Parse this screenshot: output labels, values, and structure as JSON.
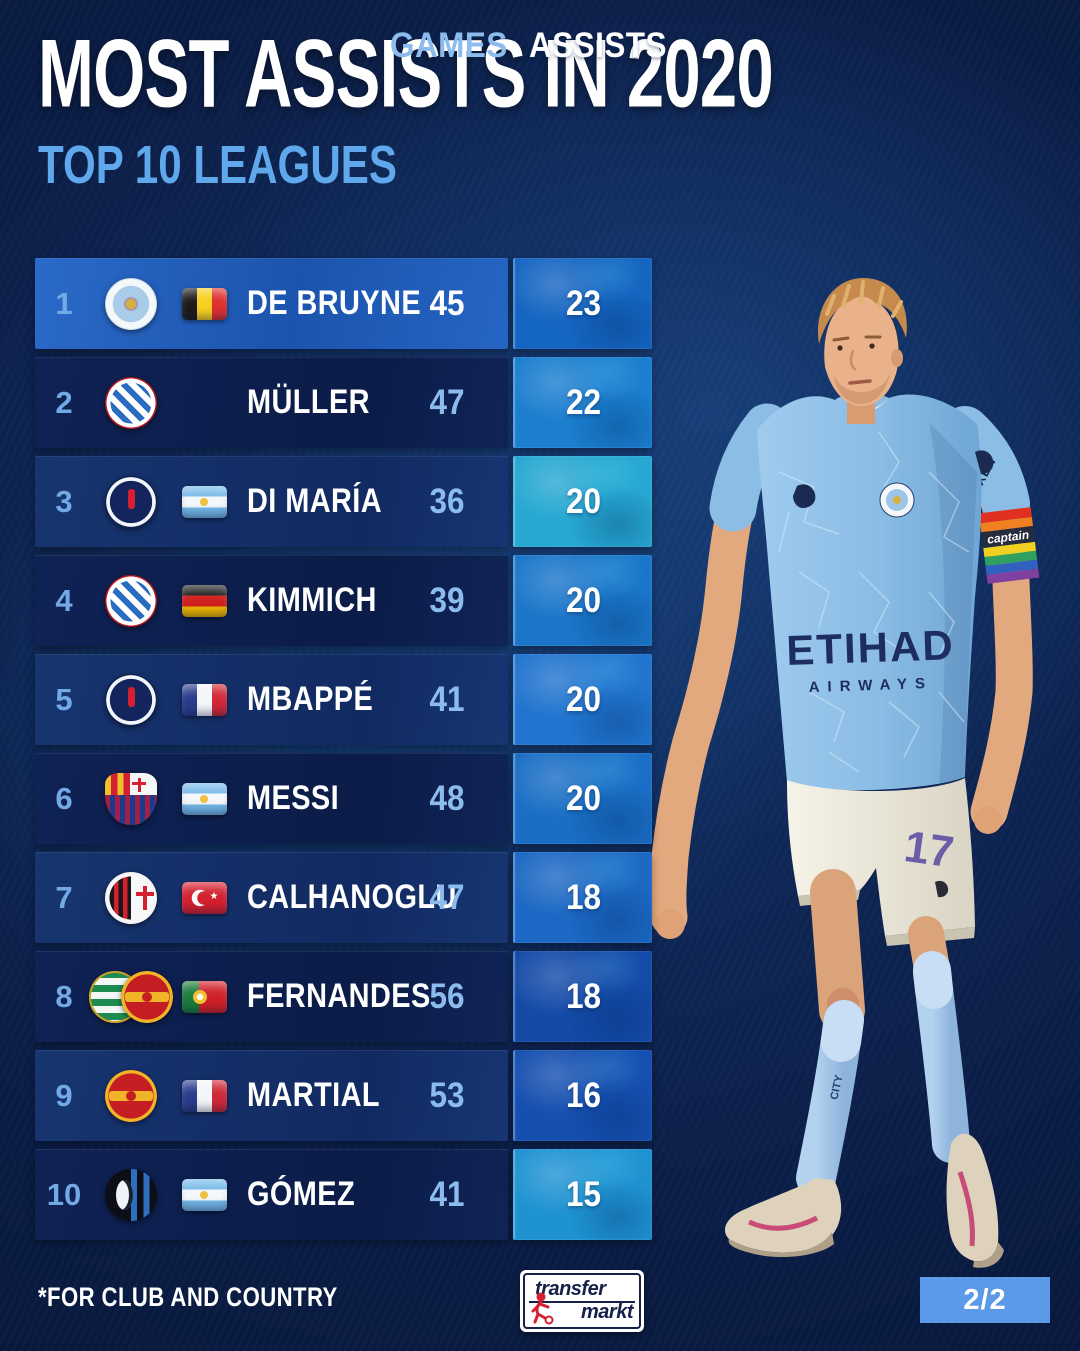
{
  "header": {
    "title": "MOST ASSISTS IN 2020",
    "subtitle": "TOP 10 LEAGUES"
  },
  "chart_data": {
    "type": "table",
    "title": "MOST ASSISTS IN 2020",
    "subtitle": "TOP 10 LEAGUES",
    "columns": [
      "GAMES",
      "ASSISTS"
    ],
    "rows": [
      {
        "rank": "1",
        "clubs": [
          "manchester-city"
        ],
        "flag": "belgium",
        "player": "DE BRUYNE",
        "games": 45,
        "assists": 23,
        "tile_color": "#1565c2"
      },
      {
        "rank": "2",
        "clubs": [
          "bayern-munich"
        ],
        "flag": null,
        "player": "MÜLLER",
        "games": 47,
        "assists": 22,
        "tile_color": "#1b7ecf"
      },
      {
        "rank": "3",
        "clubs": [
          "psg"
        ],
        "flag": "argentina",
        "player": "DI MARÍA",
        "games": 36,
        "assists": 20,
        "tile_color": "#27a8d2"
      },
      {
        "rank": "4",
        "clubs": [
          "bayern-munich"
        ],
        "flag": "germany",
        "player": "KIMMICH",
        "games": 39,
        "assists": 20,
        "tile_color": "#1b76ca"
      },
      {
        "rank": "5",
        "clubs": [
          "psg"
        ],
        "flag": "france",
        "player": "MBAPPÉ",
        "games": 41,
        "assists": 20,
        "tile_color": "#2174cf"
      },
      {
        "rank": "6",
        "clubs": [
          "barcelona"
        ],
        "flag": "argentina",
        "player": "MESSI",
        "games": 48,
        "assists": 20,
        "tile_color": "#1a6ec6"
      },
      {
        "rank": "7",
        "clubs": [
          "ac-milan"
        ],
        "flag": "turkey",
        "player": "CALHANOGLU",
        "games": 47,
        "assists": 18,
        "tile_color": "#1c68c4"
      },
      {
        "rank": "8",
        "clubs": [
          "sporting-cp",
          "manchester-united"
        ],
        "flag": "portugal",
        "player": "FERNANDES",
        "games": 56,
        "assists": 18,
        "tile_color": "#144aa8"
      },
      {
        "rank": "9",
        "clubs": [
          "manchester-united"
        ],
        "flag": "france",
        "player": "MARTIAL",
        "games": 53,
        "assists": 16,
        "tile_color": "#154fb0"
      },
      {
        "rank": "10",
        "clubs": [
          "atalanta"
        ],
        "flag": "argentina",
        "player": "GÓMEZ",
        "games": 41,
        "assists": 15,
        "tile_color": "#1f93d2"
      }
    ]
  },
  "player_photo": {
    "kit_sponsor_line1": "ETIHAD",
    "kit_sponsor_line2": "AIRWAYS",
    "shirt_number": "17",
    "armband_text": "captain",
    "sleeve_sponsor": "NEXEN",
    "sock_text": "CITY"
  },
  "footer": {
    "footnote": "*FOR CLUB AND COUNTRY",
    "brand_line1": "transfer",
    "brand_line2": "markt",
    "page_indicator": "2/2"
  },
  "colors": {
    "background": "#0a1c44",
    "row_highlight": "#1e5cb6",
    "row_light": "#15316c",
    "row_dark": "#0d2050",
    "accent_number": "#8cbcee",
    "rank_number": "#73aae6",
    "subtitle": "#5fa8ec",
    "page_badge": "#5b9ae8",
    "text": "#ffffff"
  }
}
